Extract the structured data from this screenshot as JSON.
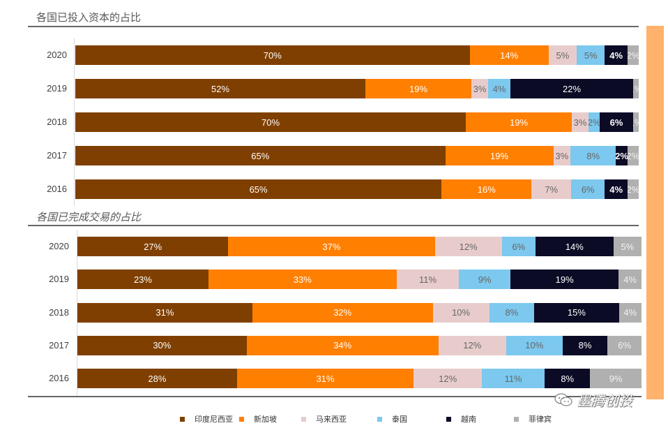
{
  "colors": {
    "印度尼西亚": "#7F3F00",
    "新加坡": "#FF7F00",
    "马来西亚": "#E8CCCC",
    "泰国": "#7CC8EE",
    "越南": "#0B0B26",
    "菲律宾": "#B0B0B0",
    "strip": "#FFB26B"
  },
  "label_colors": {
    "印度尼西亚": "#ffffff",
    "新加坡": "#ffffff",
    "马来西亚": "#666666",
    "泰国": "#666666",
    "越南": "#ffffff",
    "菲律宾": "#f2f2f2"
  },
  "legend": [
    "印度尼西亚",
    "新加坡",
    "马来西亚",
    "泰国",
    "越南",
    "菲律宾"
  ],
  "watermark": "墨腾创投",
  "chart_data": [
    {
      "type": "bar",
      "orientation": "horizontal",
      "stacked": "percent",
      "title": "各国已投入资本的占比",
      "categories": [
        "2020",
        "2019",
        "2018",
        "2017",
        "2016"
      ],
      "series": [
        {
          "name": "印度尼西亚",
          "values": [
            70,
            52,
            70,
            65,
            65
          ]
        },
        {
          "name": "新加坡",
          "values": [
            14,
            19,
            19,
            19,
            16
          ]
        },
        {
          "name": "马来西亚",
          "values": [
            5,
            3,
            3,
            3,
            7
          ]
        },
        {
          "name": "泰国",
          "values": [
            5,
            4,
            2,
            8,
            6
          ]
        },
        {
          "name": "越南",
          "values": [
            4,
            22,
            6,
            2,
            4
          ]
        },
        {
          "name": "菲律宾",
          "values": [
            2,
            1,
            1,
            2,
            2
          ]
        }
      ],
      "xlabel": "",
      "ylabel": "",
      "unit": "%",
      "legend_position": "bottom",
      "grid": false
    },
    {
      "type": "bar",
      "orientation": "horizontal",
      "stacked": "percent",
      "title": "各国已完成交易的占比",
      "categories": [
        "2020",
        "2019",
        "2018",
        "2017",
        "2016"
      ],
      "series": [
        {
          "name": "印度尼西亚",
          "values": [
            27,
            23,
            31,
            30,
            28
          ]
        },
        {
          "name": "新加坡",
          "values": [
            37,
            33,
            32,
            34,
            31
          ]
        },
        {
          "name": "马来西亚",
          "values": [
            12,
            11,
            10,
            12,
            12
          ]
        },
        {
          "name": "泰国",
          "values": [
            6,
            9,
            8,
            10,
            11
          ]
        },
        {
          "name": "越南",
          "values": [
            14,
            19,
            15,
            8,
            8
          ]
        },
        {
          "name": "菲律宾",
          "values": [
            5,
            4,
            4,
            6,
            9
          ]
        }
      ],
      "xlabel": "",
      "ylabel": "",
      "unit": "%",
      "legend_position": "bottom",
      "grid": false
    }
  ]
}
